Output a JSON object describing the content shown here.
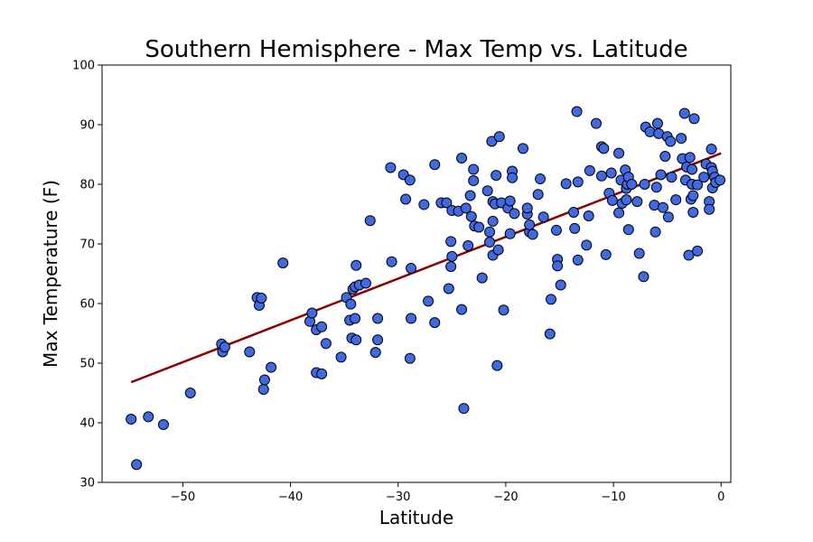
{
  "chart_data": {
    "type": "scatter",
    "title": "Southern Hemisphere - Max Temp vs. Latitude",
    "xlabel": "Latitude",
    "ylabel": "Max Temperature (F)",
    "xlim": [
      -57.5,
      0.9
    ],
    "ylim": [
      30,
      100
    ],
    "xticks": [
      -50,
      -40,
      -30,
      -20,
      -10,
      0
    ],
    "yticks": [
      30,
      40,
      50,
      60,
      70,
      80,
      90,
      100
    ],
    "grid": false,
    "colors": {
      "point_fill": "#4169e1",
      "point_edge": "#000000",
      "regression_line": "#8b0000"
    },
    "regression": {
      "x1": -54.8,
      "y1": 46.8,
      "x2": 0.0,
      "y2": 85.2
    },
    "points": [
      [
        -54.8,
        40.6
      ],
      [
        -54.3,
        33.0
      ],
      [
        -53.2,
        41.0
      ],
      [
        -51.8,
        39.7
      ],
      [
        -49.3,
        45.0
      ],
      [
        -46.4,
        53.2
      ],
      [
        -46.3,
        51.9
      ],
      [
        -46.1,
        52.7
      ],
      [
        -43.8,
        51.9
      ],
      [
        -43.1,
        61.0
      ],
      [
        -42.9,
        59.7
      ],
      [
        -42.7,
        60.9
      ],
      [
        -42.5,
        45.6
      ],
      [
        -42.4,
        47.2
      ],
      [
        -41.8,
        49.3
      ],
      [
        -40.7,
        66.8
      ],
      [
        -38.2,
        57.0
      ],
      [
        -38.0,
        58.4
      ],
      [
        -37.6,
        55.6
      ],
      [
        -37.6,
        48.4
      ],
      [
        -37.1,
        48.2
      ],
      [
        -37.1,
        56.1
      ],
      [
        -36.7,
        53.3
      ],
      [
        -35.3,
        51.0
      ],
      [
        -34.8,
        61.0
      ],
      [
        -34.5,
        57.2
      ],
      [
        -34.4,
        59.9
      ],
      [
        -34.3,
        54.2
      ],
      [
        -34.2,
        62.4
      ],
      [
        -34.0,
        57.5
      ],
      [
        -34.0,
        62.8
      ],
      [
        -33.9,
        66.4
      ],
      [
        -33.9,
        53.9
      ],
      [
        -33.6,
        63.1
      ],
      [
        -33.0,
        63.4
      ],
      [
        -32.6,
        73.9
      ],
      [
        -32.1,
        51.8
      ],
      [
        -31.9,
        53.9
      ],
      [
        -31.9,
        57.5
      ],
      [
        -30.6,
        67.0
      ],
      [
        -30.7,
        82.8
      ],
      [
        -29.5,
        81.6
      ],
      [
        -29.3,
        77.5
      ],
      [
        -28.9,
        80.7
      ],
      [
        -28.8,
        65.9
      ],
      [
        -28.8,
        57.5
      ],
      [
        -28.9,
        50.8
      ],
      [
        -27.6,
        76.6
      ],
      [
        -27.2,
        60.4
      ],
      [
        -26.6,
        83.3
      ],
      [
        -26.6,
        56.8
      ],
      [
        -26.0,
        76.9
      ],
      [
        -25.5,
        76.9
      ],
      [
        -25.3,
        62.5
      ],
      [
        -25.1,
        70.4
      ],
      [
        -25.1,
        66.2
      ],
      [
        -25.0,
        67.9
      ],
      [
        -25.0,
        75.6
      ],
      [
        -24.4,
        75.5
      ],
      [
        -24.1,
        84.4
      ],
      [
        -24.1,
        59.0
      ],
      [
        -23.9,
        42.4
      ],
      [
        -23.7,
        76.0
      ],
      [
        -23.5,
        69.7
      ],
      [
        -23.3,
        78.1
      ],
      [
        -23.2,
        74.6
      ],
      [
        -23.0,
        82.5
      ],
      [
        -23.0,
        80.6
      ],
      [
        -22.9,
        73.0
      ],
      [
        -22.5,
        72.8
      ],
      [
        -22.2,
        64.3
      ],
      [
        -21.7,
        78.9
      ],
      [
        -21.5,
        72.0
      ],
      [
        -21.5,
        70.3
      ],
      [
        -21.3,
        87.2
      ],
      [
        -21.2,
        68.1
      ],
      [
        -21.2,
        73.8
      ],
      [
        -21.2,
        77.1
      ],
      [
        -21.0,
        76.7
      ],
      [
        -20.9,
        81.5
      ],
      [
        -20.8,
        49.6
      ],
      [
        -20.7,
        69.0
      ],
      [
        -20.6,
        88.0
      ],
      [
        -20.4,
        76.9
      ],
      [
        -20.2,
        58.9
      ],
      [
        -19.8,
        76.0
      ],
      [
        -19.6,
        77.2
      ],
      [
        -19.6,
        71.7
      ],
      [
        -19.4,
        82.2
      ],
      [
        -19.4,
        81.1
      ],
      [
        -19.2,
        75.1
      ],
      [
        -18.4,
        86.0
      ],
      [
        -18.0,
        75.0
      ],
      [
        -18.0,
        76.0
      ],
      [
        -17.8,
        72.0
      ],
      [
        -17.8,
        73.2
      ],
      [
        -17.5,
        71.6
      ],
      [
        -17.0,
        78.3
      ],
      [
        -16.8,
        80.9
      ],
      [
        -16.5,
        74.5
      ],
      [
        -15.9,
        54.9
      ],
      [
        -15.8,
        60.7
      ],
      [
        -15.3,
        72.3
      ],
      [
        -15.2,
        67.4
      ],
      [
        -15.2,
        66.3
      ],
      [
        -14.9,
        63.1
      ],
      [
        -14.4,
        80.1
      ],
      [
        -13.7,
        75.3
      ],
      [
        -13.6,
        72.6
      ],
      [
        -13.4,
        92.2
      ],
      [
        -13.3,
        80.4
      ],
      [
        -13.3,
        67.3
      ],
      [
        -12.5,
        69.8
      ],
      [
        -12.3,
        74.7
      ],
      [
        -12.2,
        82.3
      ],
      [
        -11.6,
        90.2
      ],
      [
        -11.1,
        86.3
      ],
      [
        -11.1,
        81.4
      ],
      [
        -10.9,
        86.0
      ],
      [
        -10.7,
        68.2
      ],
      [
        -10.4,
        78.5
      ],
      [
        -10.2,
        81.9
      ],
      [
        -10.1,
        77.3
      ],
      [
        -9.5,
        85.2
      ],
      [
        -9.5,
        75.2
      ],
      [
        -9.3,
        80.7
      ],
      [
        -9.2,
        76.8
      ],
      [
        -8.9,
        82.4
      ],
      [
        -8.8,
        79.3
      ],
      [
        -8.8,
        77.4
      ],
      [
        -8.7,
        80.0
      ],
      [
        -8.6,
        81.2
      ],
      [
        -8.6,
        72.4
      ],
      [
        -8.3,
        80.0
      ],
      [
        -7.8,
        77.1
      ],
      [
        -7.6,
        68.4
      ],
      [
        -7.2,
        64.5
      ],
      [
        -7.1,
        80.0
      ],
      [
        -7.0,
        89.6
      ],
      [
        -6.6,
        88.8
      ],
      [
        -6.2,
        76.5
      ],
      [
        -6.1,
        72.0
      ],
      [
        -6.0,
        79.5
      ],
      [
        -5.9,
        90.2
      ],
      [
        -5.8,
        88.5
      ],
      [
        -5.6,
        81.6
      ],
      [
        -5.4,
        76.1
      ],
      [
        -5.2,
        84.7
      ],
      [
        -5.0,
        88.0
      ],
      [
        -4.9,
        74.5
      ],
      [
        -4.7,
        87.2
      ],
      [
        -4.6,
        81.2
      ],
      [
        -4.2,
        77.4
      ],
      [
        -3.7,
        87.7
      ],
      [
        -3.6,
        84.3
      ],
      [
        -3.4,
        91.9
      ],
      [
        -3.3,
        80.7
      ],
      [
        -3.2,
        82.9
      ],
      [
        -3.0,
        68.1
      ],
      [
        -2.9,
        84.5
      ],
      [
        -2.8,
        77.5
      ],
      [
        -2.7,
        82.5
      ],
      [
        -2.7,
        80.0
      ],
      [
        -2.6,
        75.3
      ],
      [
        -2.6,
        78.1
      ],
      [
        -2.5,
        91.0
      ],
      [
        -2.2,
        68.8
      ],
      [
        -2.2,
        79.9
      ],
      [
        -1.6,
        81.2
      ],
      [
        -1.4,
        83.4
      ],
      [
        -1.1,
        77.1
      ],
      [
        -1.1,
        75.8
      ],
      [
        -0.9,
        85.9
      ],
      [
        -0.9,
        82.8
      ],
      [
        -0.8,
        82.2
      ],
      [
        -0.8,
        79.4
      ],
      [
        -0.6,
        81.2
      ],
      [
        -0.5,
        80.3
      ],
      [
        -0.1,
        80.7
      ]
    ]
  }
}
